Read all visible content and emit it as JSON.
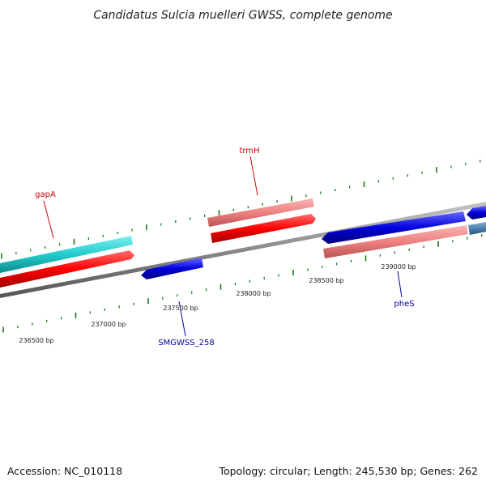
{
  "title": "Candidatus Sulcia muelleri GWSS, complete genome",
  "footer": {
    "accession": "Accession: NC_010118",
    "summary": "Topology: circular; Length: 245,530 bp; Genes: 262"
  },
  "scale_labels": [
    "236500 bp",
    "237000 bp",
    "237500 bp",
    "238000 bp",
    "238500 bp",
    "239000 bp"
  ],
  "gene_labels": [
    "gapA",
    "trmH",
    "SMGWSS_258",
    "pheS"
  ],
  "colors": {
    "forward_cds": "#ff0000",
    "forward_rna": "#ee8080",
    "reverse_cds": "#0000dd",
    "other_feature": "#22cccc",
    "backbone": "#8a8a8a",
    "tick": "#1a7a1a",
    "label_forward": "#cc0000",
    "label_reverse": "#000099"
  }
}
